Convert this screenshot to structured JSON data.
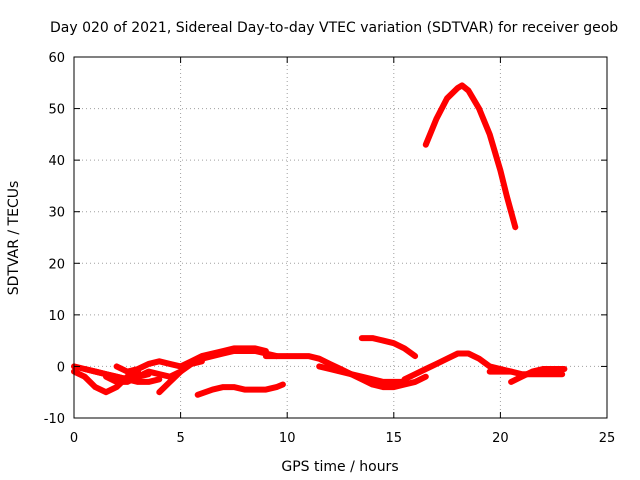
{
  "chart_data": {
    "type": "line",
    "title": "Day 020 of 2021, Sidereal Day-to-day VTEC variation (SDTVAR) for receiver geob",
    "xlabel": "GPS time / hours",
    "ylabel": "SDTVAR / TECUs",
    "xlim": [
      0,
      25
    ],
    "ylim": [
      -10,
      60
    ],
    "xticks": [
      0,
      5,
      10,
      15,
      20,
      25
    ],
    "yticks": [
      -10,
      0,
      10,
      20,
      30,
      40,
      50,
      60
    ],
    "xtick_labels": [
      "0",
      "5",
      "10",
      "15",
      "20",
      "25"
    ],
    "ytick_labels": [
      "-10",
      "0",
      "10",
      "20",
      "30",
      "40",
      "50",
      "60"
    ],
    "grid": true,
    "series_color": "#ff0000",
    "series": [
      {
        "name": "arc-1",
        "x": [
          0,
          0.5,
          1.0,
          1.5,
          2.0,
          2.5,
          3.0,
          3.5,
          4.0
        ],
        "y": [
          0,
          -0.5,
          -1.0,
          -1.5,
          -2.0,
          -2.5,
          -3.0,
          -3.0,
          -2.5
        ]
      },
      {
        "name": "arc-2",
        "x": [
          0,
          0.5,
          1.0,
          1.5,
          2.0,
          2.5,
          3.0
        ],
        "y": [
          -1.0,
          -2.0,
          -4.0,
          -5.0,
          -4.0,
          -2.0,
          -1.0
        ]
      },
      {
        "name": "arc-3",
        "x": [
          1.5,
          2.0,
          2.5,
          3.0,
          3.5,
          4.0,
          4.5,
          5.0
        ],
        "y": [
          -2.0,
          -3.0,
          -3.0,
          -2.0,
          -1.0,
          -1.5,
          -2.0,
          -1.0
        ]
      },
      {
        "name": "arc-4",
        "x": [
          2.0,
          2.5,
          3.0,
          3.5,
          4.0,
          4.5,
          5.0,
          5.5,
          6.0
        ],
        "y": [
          0,
          -1.0,
          -0.5,
          0.5,
          1.0,
          0.5,
          0,
          0.5,
          1.0
        ]
      },
      {
        "name": "arc-5",
        "x": [
          0.5,
          1.0,
          1.5,
          2.0,
          2.5,
          3.0,
          3.5
        ],
        "y": [
          -0.5,
          -1.0,
          -1.5,
          -2.0,
          -2.5,
          -2.0,
          -1.5
        ]
      },
      {
        "name": "arc-6",
        "x": [
          4.0,
          4.5,
          5.0,
          5.5,
          6.0,
          6.5,
          7.0,
          7.5,
          8.0,
          8.5,
          9.0,
          9.5
        ],
        "y": [
          -5.0,
          -3.0,
          -1.0,
          0.5,
          1.5,
          2.0,
          2.5,
          3.0,
          3.0,
          3.0,
          2.5,
          2.0
        ]
      },
      {
        "name": "arc-7",
        "x": [
          5.0,
          5.5,
          6.0,
          6.5,
          7.0,
          7.5,
          8.0,
          8.5,
          9.0
        ],
        "y": [
          0,
          1.0,
          2.0,
          2.5,
          3.0,
          3.5,
          3.5,
          3.5,
          3.0
        ]
      },
      {
        "name": "arc-8",
        "x": [
          5.8,
          6.5,
          7.0,
          7.5,
          8.0,
          8.5,
          9.0,
          9.5,
          9.8
        ],
        "y": [
          -5.5,
          -4.5,
          -4.0,
          -4.0,
          -4.5,
          -4.5,
          -4.5,
          -4.0,
          -3.5
        ]
      },
      {
        "name": "arc-9",
        "x": [
          9.0,
          9.5,
          10.0,
          10.5,
          11.0,
          11.5,
          12.0,
          12.5,
          13.0,
          13.5,
          14.0,
          14.5,
          15.0,
          15.5,
          16.0,
          16.5
        ],
        "y": [
          2.0,
          2.0,
          2.0,
          2.0,
          2.0,
          1.5,
          0.5,
          -0.5,
          -1.5,
          -2.5,
          -3.5,
          -4.0,
          -4.0,
          -3.5,
          -3.0,
          -2.0
        ]
      },
      {
        "name": "arc-10",
        "x": [
          11.5,
          12.0,
          12.5,
          13.0,
          13.5,
          14.0,
          14.5,
          15.0,
          15.5
        ],
        "y": [
          0,
          -0.5,
          -1.0,
          -1.5,
          -2.0,
          -2.5,
          -3.0,
          -3.0,
          -3.0
        ]
      },
      {
        "name": "arc-11",
        "x": [
          13.5,
          14.0,
          14.5,
          15.0,
          15.5,
          16.0
        ],
        "y": [
          5.5,
          5.5,
          5.0,
          4.5,
          3.5,
          2.0
        ]
      },
      {
        "name": "arc-12",
        "x": [
          15.5,
          16.0,
          16.5,
          17.0,
          17.5,
          18.0,
          18.5,
          19.0,
          19.5,
          20.0,
          20.5
        ],
        "y": [
          -2.5,
          -1.5,
          -0.5,
          0.5,
          1.5,
          2.5,
          2.5,
          1.5,
          0,
          -0.5,
          -1.0
        ]
      },
      {
        "name": "arc-13",
        "x": [
          19.5,
          20.0,
          20.5,
          21.0,
          21.5,
          22.0,
          22.5,
          22.9
        ],
        "y": [
          -1.0,
          -1.0,
          -1.0,
          -1.5,
          -1.5,
          -1.5,
          -1.5,
          -1.5
        ]
      },
      {
        "name": "arc-14",
        "x": [
          20.5,
          21.0,
          21.5,
          22.0,
          22.5,
          23.0
        ],
        "y": [
          -3.0,
          -2.0,
          -1.0,
          -0.5,
          -0.5,
          -0.5
        ]
      },
      {
        "name": "arc-15",
        "x": [
          16.5,
          17.0,
          17.5,
          18.0,
          18.2,
          18.5,
          19.0,
          19.5,
          20.0,
          20.3,
          20.7
        ],
        "y": [
          43.0,
          48.0,
          52.0,
          54.0,
          54.5,
          53.5,
          50.0,
          45.0,
          38.0,
          33.0,
          27.0
        ]
      }
    ]
  }
}
